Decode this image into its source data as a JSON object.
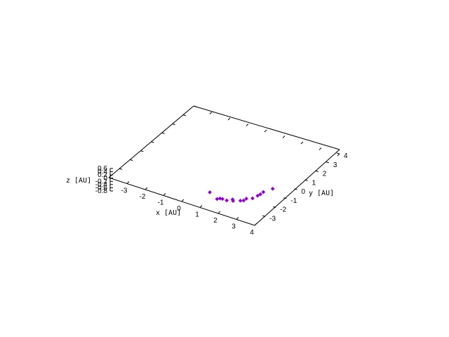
{
  "chart_data": {
    "type": "scatter",
    "projection": "3d",
    "title": "",
    "xlabel": "x [AU]",
    "ylabel": "y [AU]",
    "zlabel": "z [AU]",
    "xlim": [
      -4,
      4
    ],
    "ylim": [
      -4,
      4
    ],
    "zlim": [
      -0.8,
      0.6
    ],
    "x_ticks": [
      "-3",
      "-2",
      "-1",
      "0",
      "1",
      "2",
      "3",
      "4"
    ],
    "y_ticks": [
      "-3",
      "-2",
      "-1",
      "0",
      "1",
      "2",
      "3",
      "4"
    ],
    "z_ticks": [
      "0.6",
      "0.4",
      "0.2",
      "0",
      "-0.2",
      "-0.4",
      "-0.6",
      "-0.8"
    ],
    "grid": false,
    "legend": "none",
    "marker_color": "#9400d3",
    "points": [
      {
        "x": 0.68,
        "y": -2.52,
        "z": 0
      },
      {
        "x": 1.28,
        "y": -2.87,
        "z": 0
      },
      {
        "x": 1.37,
        "y": -2.75,
        "z": 0
      },
      {
        "x": 1.49,
        "y": -2.72,
        "z": 0
      },
      {
        "x": 1.73,
        "y": -2.73,
        "z": 0
      },
      {
        "x": 1.91,
        "y": -2.49,
        "z": 0
      },
      {
        "x": 2.0,
        "y": -2.6,
        "z": 0
      },
      {
        "x": 2.28,
        "y": -2.39,
        "z": 0
      },
      {
        "x": 2.4,
        "y": -2.29,
        "z": 0
      },
      {
        "x": 2.42,
        "y": -2.07,
        "z": 0
      },
      {
        "x": 2.65,
        "y": -1.88,
        "z": 0
      },
      {
        "x": 2.73,
        "y": -1.54,
        "z": 0
      },
      {
        "x": 2.77,
        "y": -1.35,
        "z": 0
      },
      {
        "x": 2.78,
        "y": -1.09,
        "z": 0
      },
      {
        "x": 3.0,
        "y": -0.58,
        "z": 0
      }
    ]
  }
}
